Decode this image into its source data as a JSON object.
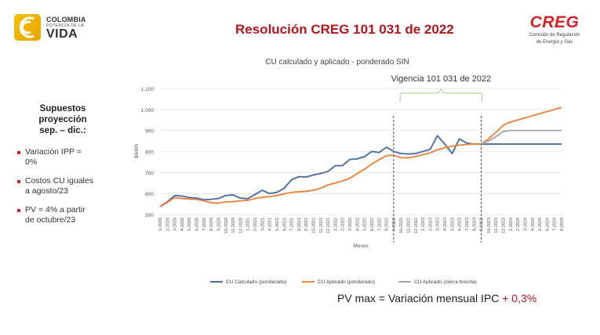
{
  "header": {
    "logo_left": {
      "line1": "COLOMBIA",
      "line2": "POTENCIA DE LA",
      "line3": "VIDA"
    },
    "title": "Resolución CREG 101 031 de 2022",
    "logo_right": {
      "word": "CREG",
      "sub1": "Comisión de Regulación",
      "sub2": "de Energía y Gas"
    }
  },
  "sidebar": {
    "heading": [
      "Supuestos",
      "proyección",
      "sep. – dic.:"
    ],
    "bullets": [
      {
        "lines": [
          "Variación IPP =",
          "0%"
        ]
      },
      {
        "lines": [
          "Costos CU iguales",
          "a agosto/23"
        ]
      },
      {
        "lines": [
          "PV = 4% a partir",
          "de octubre/23"
        ]
      }
    ]
  },
  "footer": {
    "text": "PV max = Variación mensual IPC",
    "accent": "+ 0,3%"
  },
  "colors": {
    "title": "#b3151d",
    "calc": "#4a6fa5",
    "aplicado": "#e8853e",
    "brecha": "#a6a6a6",
    "bracket": "#9acd7a"
  },
  "chart_data": {
    "type": "line",
    "title": "CU calculado y aplicado - ponderado SIN",
    "xlabel": "Meses",
    "ylabel": "$/kWh",
    "ylim": [
      500,
      1100
    ],
    "yticks": [
      "500",
      "600",
      "700",
      "800",
      "900",
      "1.000",
      "1.100"
    ],
    "grid": true,
    "legend_position": "bottom",
    "annotation": {
      "text": "Vigencia 101 031 de 2022",
      "from": "10-2022",
      "to": "9-2023"
    },
    "vlines": [
      "9-2022",
      "9-2023"
    ],
    "categories": [
      "1-2020",
      "2-2020",
      "3-2020",
      "4-2020",
      "5-2020",
      "6-2020",
      "7-2020",
      "8-2020",
      "9-2020",
      "10-2020",
      "11-2020",
      "12-2020",
      "1-2021",
      "2-2021",
      "3-2021",
      "4-2021",
      "5-2021",
      "6-2021",
      "7-2021",
      "8-2021",
      "9-2021",
      "10-2021",
      "11-2021",
      "12-2021",
      "1-2022",
      "2-2022",
      "3-2022",
      "4-2022",
      "5-2022",
      "6-2022",
      "7-2022",
      "8-2022",
      "9-2022",
      "10-2022",
      "11-2022",
      "12-2022",
      "1-2023",
      "2-2023",
      "3-2023",
      "4-2023",
      "5-2023",
      "6-2023",
      "7-2023",
      "8-2023",
      "9-2023",
      "10-2023",
      "11-2023",
      "12-2023",
      "1-2024",
      "2-2024",
      "3-2024",
      "4-2024",
      "5-2024",
      "6-2024",
      "7-2024",
      "8-2024"
    ],
    "series": [
      {
        "name": "CU Calculado (ponderado)",
        "color": "#4a6fa5",
        "values": [
          538,
          560,
          590,
          588,
          580,
          578,
          570,
          572,
          576,
          590,
          593,
          578,
          575,
          595,
          615,
          600,
          605,
          625,
          665,
          680,
          678,
          688,
          695,
          705,
          732,
          733,
          762,
          765,
          775,
          800,
          795,
          820,
          800,
          790,
          788,
          790,
          800,
          810,
          875,
          835,
          790,
          860,
          840,
          835,
          835,
          835,
          835,
          835,
          835,
          835,
          835,
          835,
          835,
          835,
          835,
          835
        ]
      },
      {
        "name": "CU Aplicado (ponderado)",
        "color": "#e8853e",
        "values": [
          536,
          557,
          580,
          576,
          573,
          572,
          565,
          556,
          554,
          560,
          561,
          565,
          567,
          576,
          582,
          585,
          590,
          598,
          605,
          608,
          610,
          615,
          625,
          640,
          650,
          660,
          672,
          695,
          715,
          740,
          760,
          780,
          783,
          770,
          770,
          776,
          785,
          793,
          808,
          818,
          825,
          830,
          833,
          835,
          836,
          860,
          890,
          925,
          940,
          950,
          960,
          970,
          980,
          990,
          1000,
          1010
        ]
      },
      {
        "name": "CU Aplicado (cierra brecha)",
        "color": "#a6a6a6",
        "values": [
          null,
          null,
          null,
          null,
          null,
          null,
          null,
          null,
          null,
          null,
          null,
          null,
          null,
          null,
          null,
          null,
          null,
          null,
          null,
          null,
          null,
          null,
          null,
          null,
          null,
          null,
          null,
          null,
          null,
          null,
          null,
          null,
          null,
          null,
          null,
          null,
          null,
          null,
          null,
          null,
          null,
          null,
          null,
          null,
          836,
          850,
          870,
          895,
          900,
          900,
          900,
          900,
          900,
          900,
          900,
          900
        ]
      }
    ]
  }
}
